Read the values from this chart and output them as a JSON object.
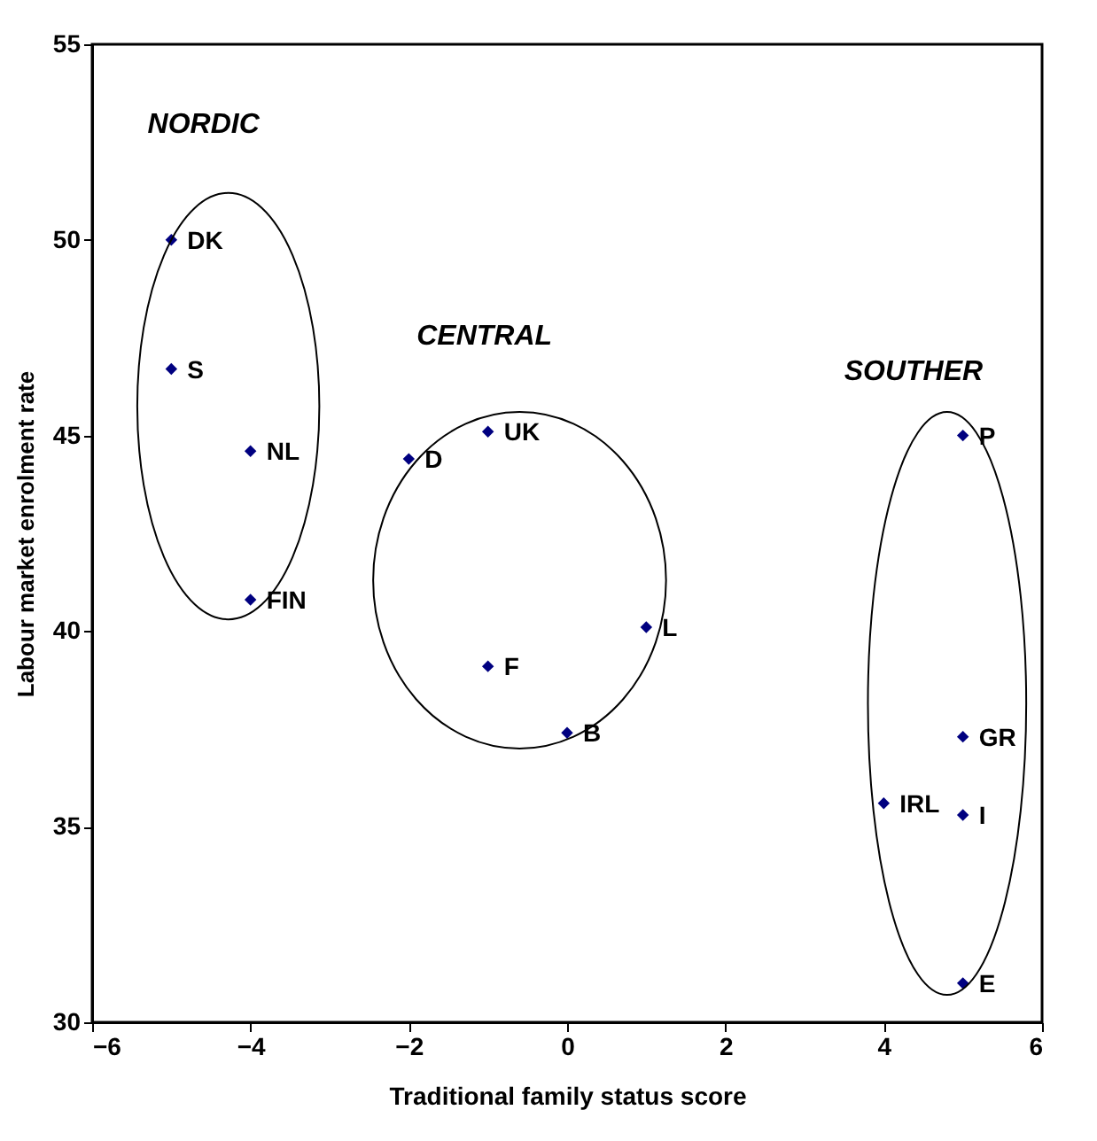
{
  "chart_data": {
    "type": "scatter",
    "xlabel": "Traditional family status score",
    "ylabel": "Labour market enrolment rate",
    "x": [
      -5,
      -5,
      -4,
      -4,
      -2,
      -1,
      -1,
      1,
      0,
      5,
      5,
      5,
      4,
      5
    ],
    "series": [
      {
        "color": "#000080",
        "values": [
          50,
          46.7,
          44.6,
          40.8,
          44.4,
          45.1,
          39.1,
          40.1,
          37.4,
          45.0,
          37.3,
          35.3,
          35.6,
          31.0
        ]
      }
    ],
    "marker": "diamond",
    "grid": false,
    "legend": false,
    "xlim": [
      -6,
      6
    ],
    "xticks": [
      -6,
      -4,
      -2,
      0,
      2,
      4,
      6
    ],
    "ylim": [
      30,
      55
    ],
    "yticks": [
      30,
      35,
      40,
      45,
      50,
      55
    ],
    "annotations": [
      {
        "text": "DK",
        "x": -5,
        "y": 50
      },
      {
        "text": "S",
        "x": -5,
        "y": 46.7
      },
      {
        "text": "NL",
        "x": -4,
        "y": 44.6
      },
      {
        "text": "FIN",
        "x": -4,
        "y": 40.8
      },
      {
        "text": "D",
        "x": -2,
        "y": 44.4
      },
      {
        "text": "UK",
        "x": -1,
        "y": 45.1
      },
      {
        "text": "F",
        "x": -1,
        "y": 39.1
      },
      {
        "text": "L",
        "x": 1,
        "y": 40.1
      },
      {
        "text": "B",
        "x": 0,
        "y": 37.4
      },
      {
        "text": "P",
        "x": 5,
        "y": 45.0
      },
      {
        "text": "GR",
        "x": 5,
        "y": 37.3
      },
      {
        "text": "I",
        "x": 5,
        "y": 35.3
      },
      {
        "text": "IRL",
        "x": 4,
        "y": 35.6
      },
      {
        "text": "E",
        "x": 5,
        "y": 31.0
      },
      "NORDIC",
      "CENTRAL",
      "SOUTHER"
    ]
  }
}
